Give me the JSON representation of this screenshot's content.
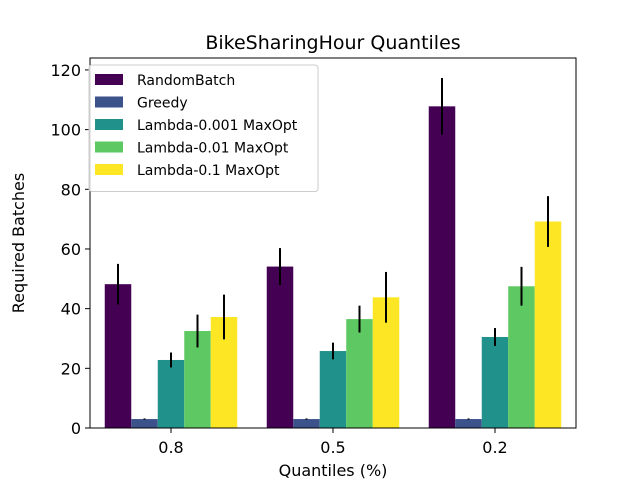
{
  "chart_data": {
    "type": "bar",
    "title": "BikeSharingHour Quantiles",
    "xlabel": "Quantiles (%)",
    "ylabel": "Required Batches",
    "categories": [
      "0.8",
      "0.5",
      "0.2"
    ],
    "ylim": [
      0,
      124
    ],
    "yticks": [
      0,
      20,
      40,
      60,
      80,
      100,
      120
    ],
    "legend_position": "top-left",
    "series": [
      {
        "name": "RandomBatch",
        "color": "#440154",
        "values": [
          48.2,
          54.1,
          107.8
        ],
        "errors": [
          6.8,
          6.2,
          9.5
        ]
      },
      {
        "name": "Greedy",
        "color": "#3b528b",
        "values": [
          3.0,
          3.0,
          3.0
        ],
        "errors": [
          0.2,
          0.2,
          0.2
        ]
      },
      {
        "name": "Lambda-0.001 MaxOpt",
        "color": "#21918c",
        "values": [
          22.8,
          25.8,
          30.5
        ],
        "errors": [
          2.5,
          2.8,
          3.0
        ]
      },
      {
        "name": "Lambda-0.01 MaxOpt",
        "color": "#5ec962",
        "values": [
          32.5,
          36.5,
          47.5
        ],
        "errors": [
          5.5,
          4.5,
          6.5
        ]
      },
      {
        "name": "Lambda-0.1 MaxOpt",
        "color": "#fde725",
        "values": [
          37.2,
          43.8,
          69.2
        ],
        "errors": [
          7.5,
          8.5,
          8.5
        ]
      }
    ]
  }
}
